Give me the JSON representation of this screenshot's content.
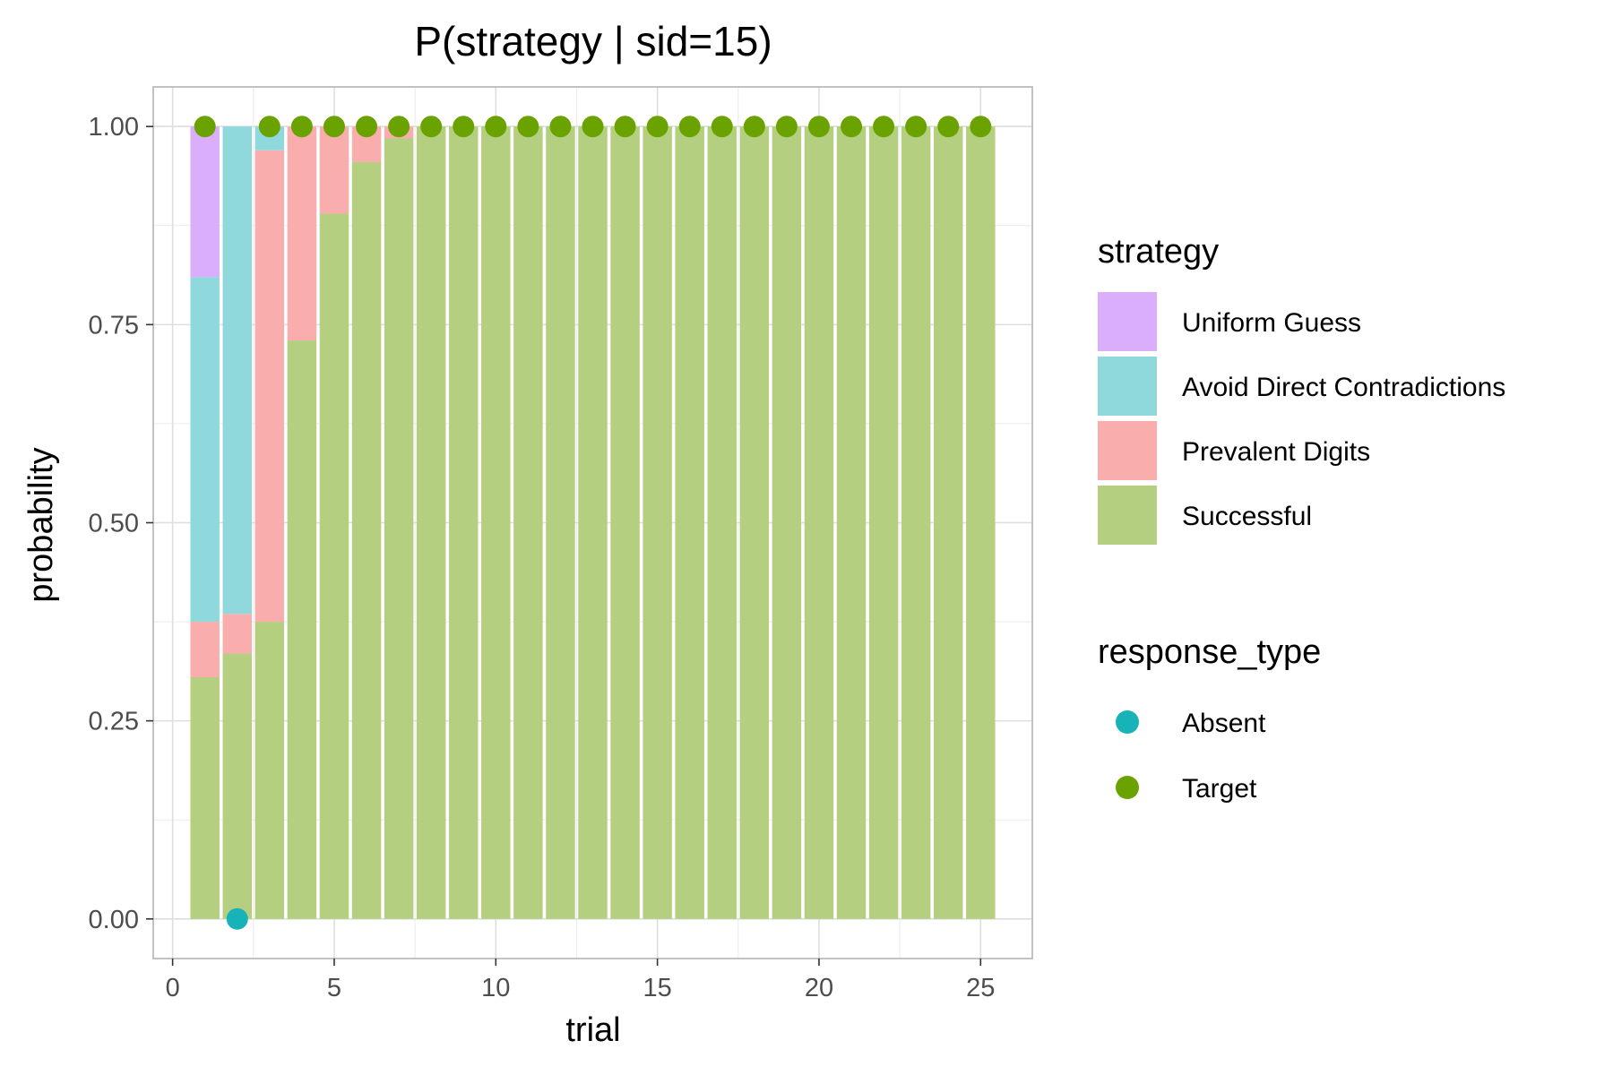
{
  "chart_data": {
    "type": "bar",
    "stacked": true,
    "title": "P(strategy | sid=15)",
    "xlabel": "trial",
    "ylabel": "probability",
    "xlim": [
      -0.6,
      26.6
    ],
    "ylim": [
      -0.05,
      1.05
    ],
    "x_ticks": [
      0,
      5,
      10,
      15,
      20,
      25
    ],
    "x_tick_labels": [
      "0",
      "5",
      "10",
      "15",
      "20",
      "25"
    ],
    "y_ticks": [
      0,
      0.25,
      0.5,
      0.75,
      1
    ],
    "y_tick_labels": [
      "0.00",
      "0.25",
      "0.50",
      "0.75",
      "1.00"
    ],
    "grid": true,
    "legend_position": "right",
    "x": [
      1,
      2,
      3,
      4,
      5,
      6,
      7,
      8,
      9,
      10,
      11,
      12,
      13,
      14,
      15,
      16,
      17,
      18,
      19,
      20,
      21,
      22,
      23,
      24,
      25
    ],
    "series": [
      {
        "name": "Successful",
        "color": "#b3cf7f",
        "values": [
          0.305,
          0.335,
          0.375,
          0.73,
          0.89,
          0.955,
          0.985,
          1,
          1,
          1,
          1,
          1,
          1,
          1,
          1,
          1,
          1,
          1,
          1,
          1,
          1,
          1,
          1,
          1,
          1
        ]
      },
      {
        "name": "Prevalent Digits",
        "color": "#f9adad",
        "values": [
          0.07,
          0.05,
          0.595,
          0.27,
          0.11,
          0.045,
          0.015,
          0,
          0,
          0,
          0,
          0,
          0,
          0,
          0,
          0,
          0,
          0,
          0,
          0,
          0,
          0,
          0,
          0,
          0
        ]
      },
      {
        "name": "Avoid Direct Contradictions",
        "color": "#8fd9dd",
        "values": [
          0.435,
          0.615,
          0.03,
          0,
          0,
          0,
          0,
          0,
          0,
          0,
          0,
          0,
          0,
          0,
          0,
          0,
          0,
          0,
          0,
          0,
          0,
          0,
          0,
          0,
          0
        ]
      },
      {
        "name": "Uniform Guess",
        "color": "#dbaefc",
        "values": [
          0.19,
          0,
          0,
          0,
          0,
          0,
          0,
          0,
          0,
          0,
          0,
          0,
          0,
          0,
          0,
          0,
          0,
          0,
          0,
          0,
          0,
          0,
          0,
          0,
          0
        ]
      }
    ],
    "points": {
      "name": "response_type",
      "x": [
        1,
        2,
        3,
        4,
        5,
        6,
        7,
        8,
        9,
        10,
        11,
        12,
        13,
        14,
        15,
        16,
        17,
        18,
        19,
        20,
        21,
        22,
        23,
        24,
        25
      ],
      "y": [
        1,
        0,
        1,
        1,
        1,
        1,
        1,
        1,
        1,
        1,
        1,
        1,
        1,
        1,
        1,
        1,
        1,
        1,
        1,
        1,
        1,
        1,
        1,
        1,
        1
      ],
      "type": [
        "Target",
        "Absent",
        "Target",
        "Target",
        "Target",
        "Target",
        "Target",
        "Target",
        "Target",
        "Target",
        "Target",
        "Target",
        "Target",
        "Target",
        "Target",
        "Target",
        "Target",
        "Target",
        "Target",
        "Target",
        "Target",
        "Target",
        "Target",
        "Target",
        "Target"
      ]
    },
    "legend": {
      "strategy_title": "strategy",
      "strategy_items": [
        {
          "label": "Uniform Guess",
          "color": "#dbaefc"
        },
        {
          "label": "Avoid Direct Contradictions",
          "color": "#8fd9dd"
        },
        {
          "label": "Prevalent Digits",
          "color": "#f9adad"
        },
        {
          "label": "Successful",
          "color": "#b3cf7f"
        }
      ],
      "response_title": "response_type",
      "response_items": [
        {
          "label": "Absent",
          "color": "#17b3b8"
        },
        {
          "label": "Target",
          "color": "#6aa200"
        }
      ]
    }
  }
}
